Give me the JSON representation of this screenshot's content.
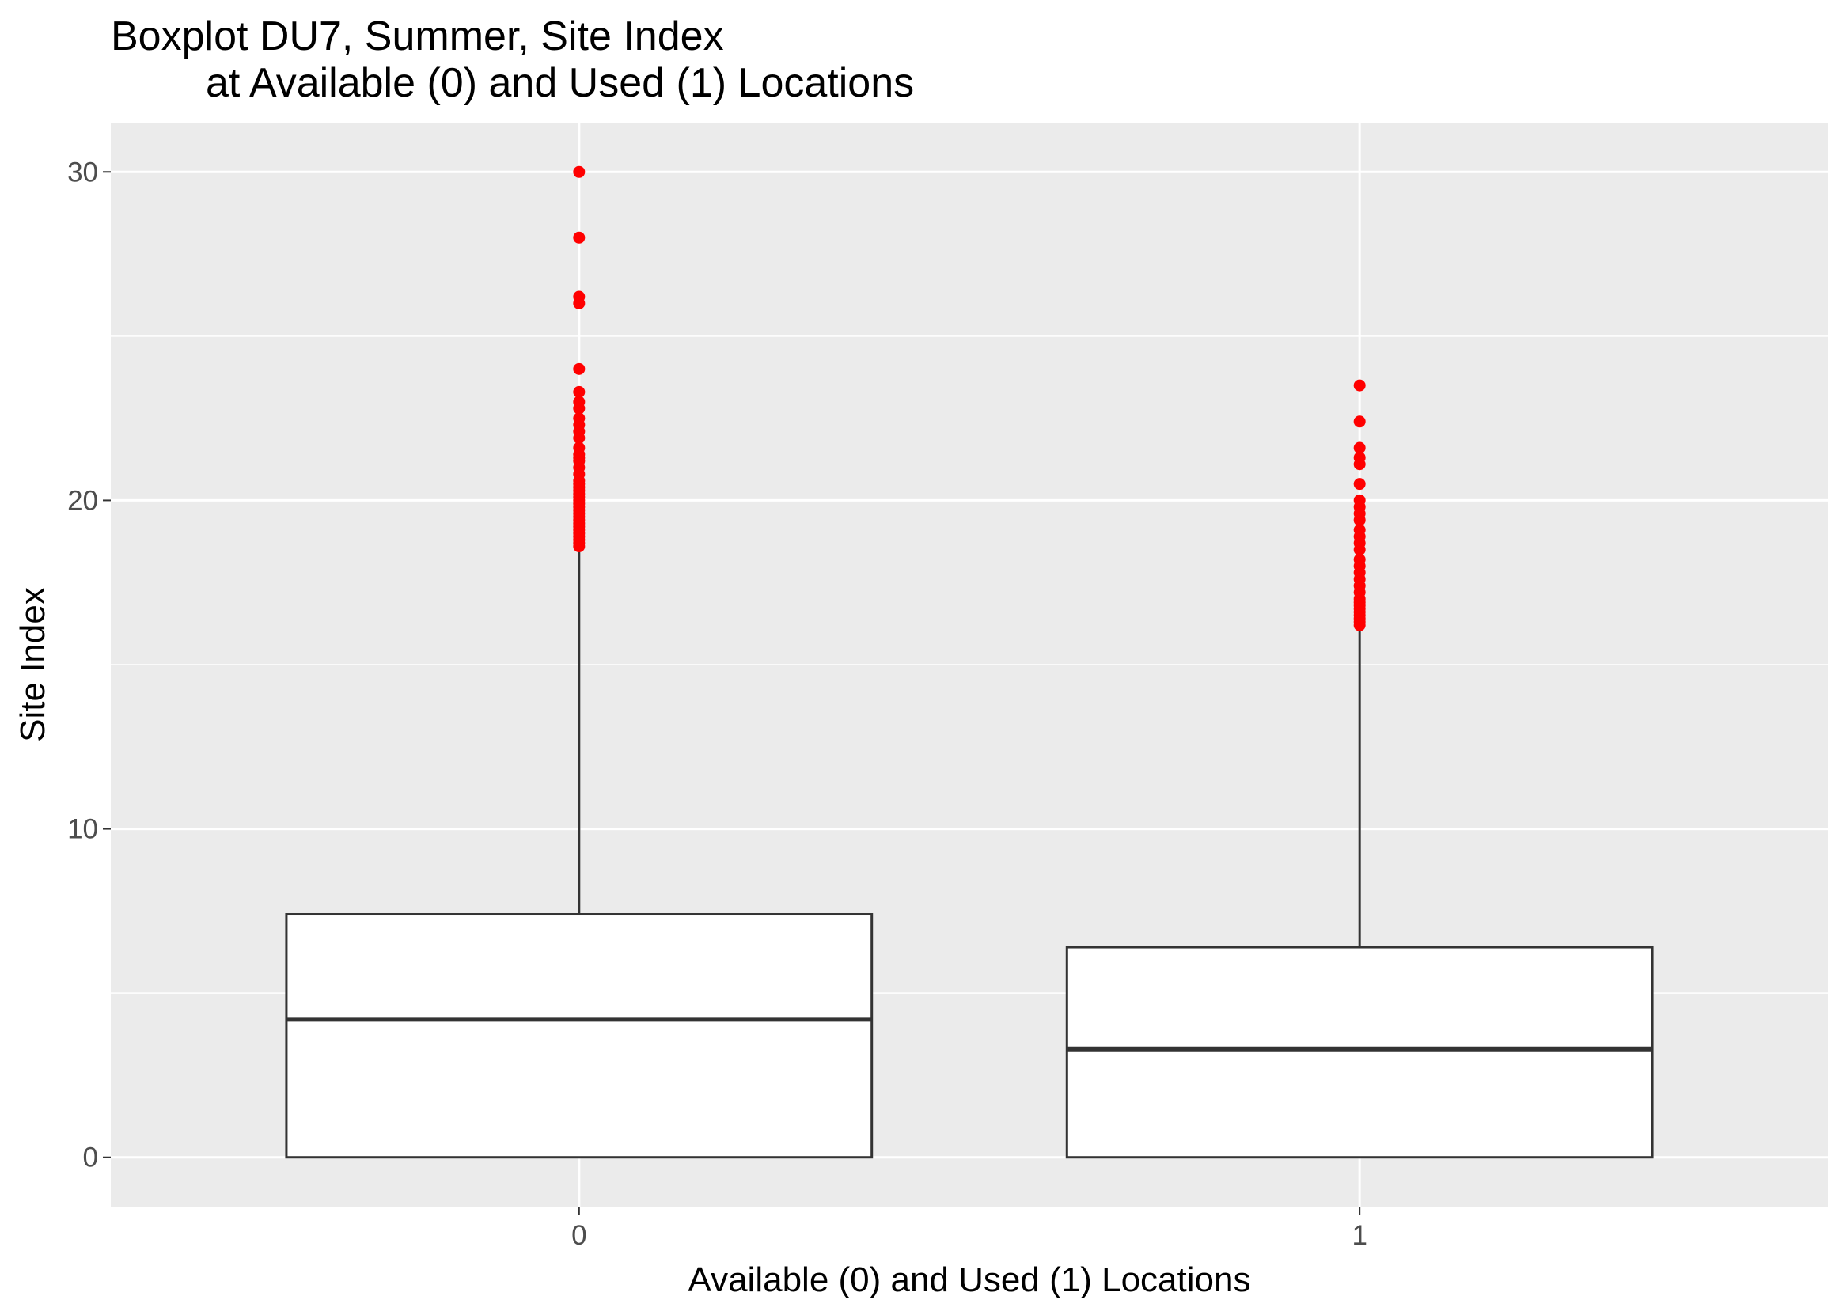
{
  "chart_data": {
    "type": "boxplot",
    "title": "Boxplot DU7, Summer, Site Index",
    "subtitle": "at Available (0) and Used (1) Locations",
    "xlabel": "Available (0) and Used (1) Locations",
    "ylabel": "Site Index",
    "categories": [
      "0",
      "1"
    ],
    "ylim": [
      -1.5,
      31.5
    ],
    "yticks": [
      0,
      10,
      20,
      30
    ],
    "grid": true,
    "outlier_color": "#ff0000",
    "panel_color": "#ebebeb",
    "boxes": [
      {
        "category": "0",
        "min": 0,
        "q1": 0,
        "median": 4.2,
        "q3": 7.4,
        "whisker_low": 0,
        "whisker_high": 18.5,
        "outliers": [
          18.6,
          18.7,
          18.8,
          18.9,
          19.0,
          19.1,
          19.2,
          19.3,
          19.4,
          19.5,
          19.6,
          19.7,
          19.8,
          19.9,
          20.0,
          20.1,
          20.2,
          20.3,
          20.4,
          20.5,
          20.6,
          20.8,
          21.0,
          21.2,
          21.3,
          21.4,
          21.6,
          21.9,
          22.1,
          22.3,
          22.5,
          22.8,
          23.0,
          23.3,
          24.0,
          26.0,
          26.2,
          28.0,
          30.0
        ]
      },
      {
        "category": "1",
        "min": 0,
        "q1": 0,
        "median": 3.3,
        "q3": 6.4,
        "whisker_low": 0,
        "whisker_high": 16.2,
        "outliers": [
          16.2,
          16.3,
          16.4,
          16.5,
          16.6,
          16.7,
          16.8,
          16.9,
          17.0,
          17.2,
          17.4,
          17.6,
          17.8,
          18.0,
          18.2,
          18.5,
          18.7,
          18.9,
          19.1,
          19.4,
          19.6,
          19.8,
          20.0,
          20.5,
          21.1,
          21.3,
          21.6,
          22.4,
          23.5
        ]
      }
    ]
  }
}
